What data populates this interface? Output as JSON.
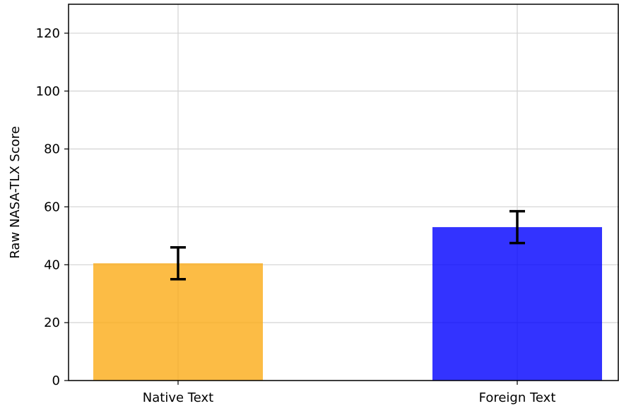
{
  "chart_data": {
    "type": "bar",
    "categories": [
      "Native Text",
      "Foreign Text"
    ],
    "values": [
      40.5,
      53.0
    ],
    "errors": [
      [
        35.0,
        46.0
      ],
      [
        47.5,
        58.5
      ]
    ],
    "colors": [
      "#fbab17",
      "#0000ff"
    ],
    "bar_opacity": 0.8,
    "ylabel": "Raw NASA-TLX Score",
    "ylim": [
      0,
      130
    ],
    "yticks": [
      "0",
      "20",
      "40",
      "60",
      "80",
      "100",
      "120"
    ],
    "grid": true
  }
}
